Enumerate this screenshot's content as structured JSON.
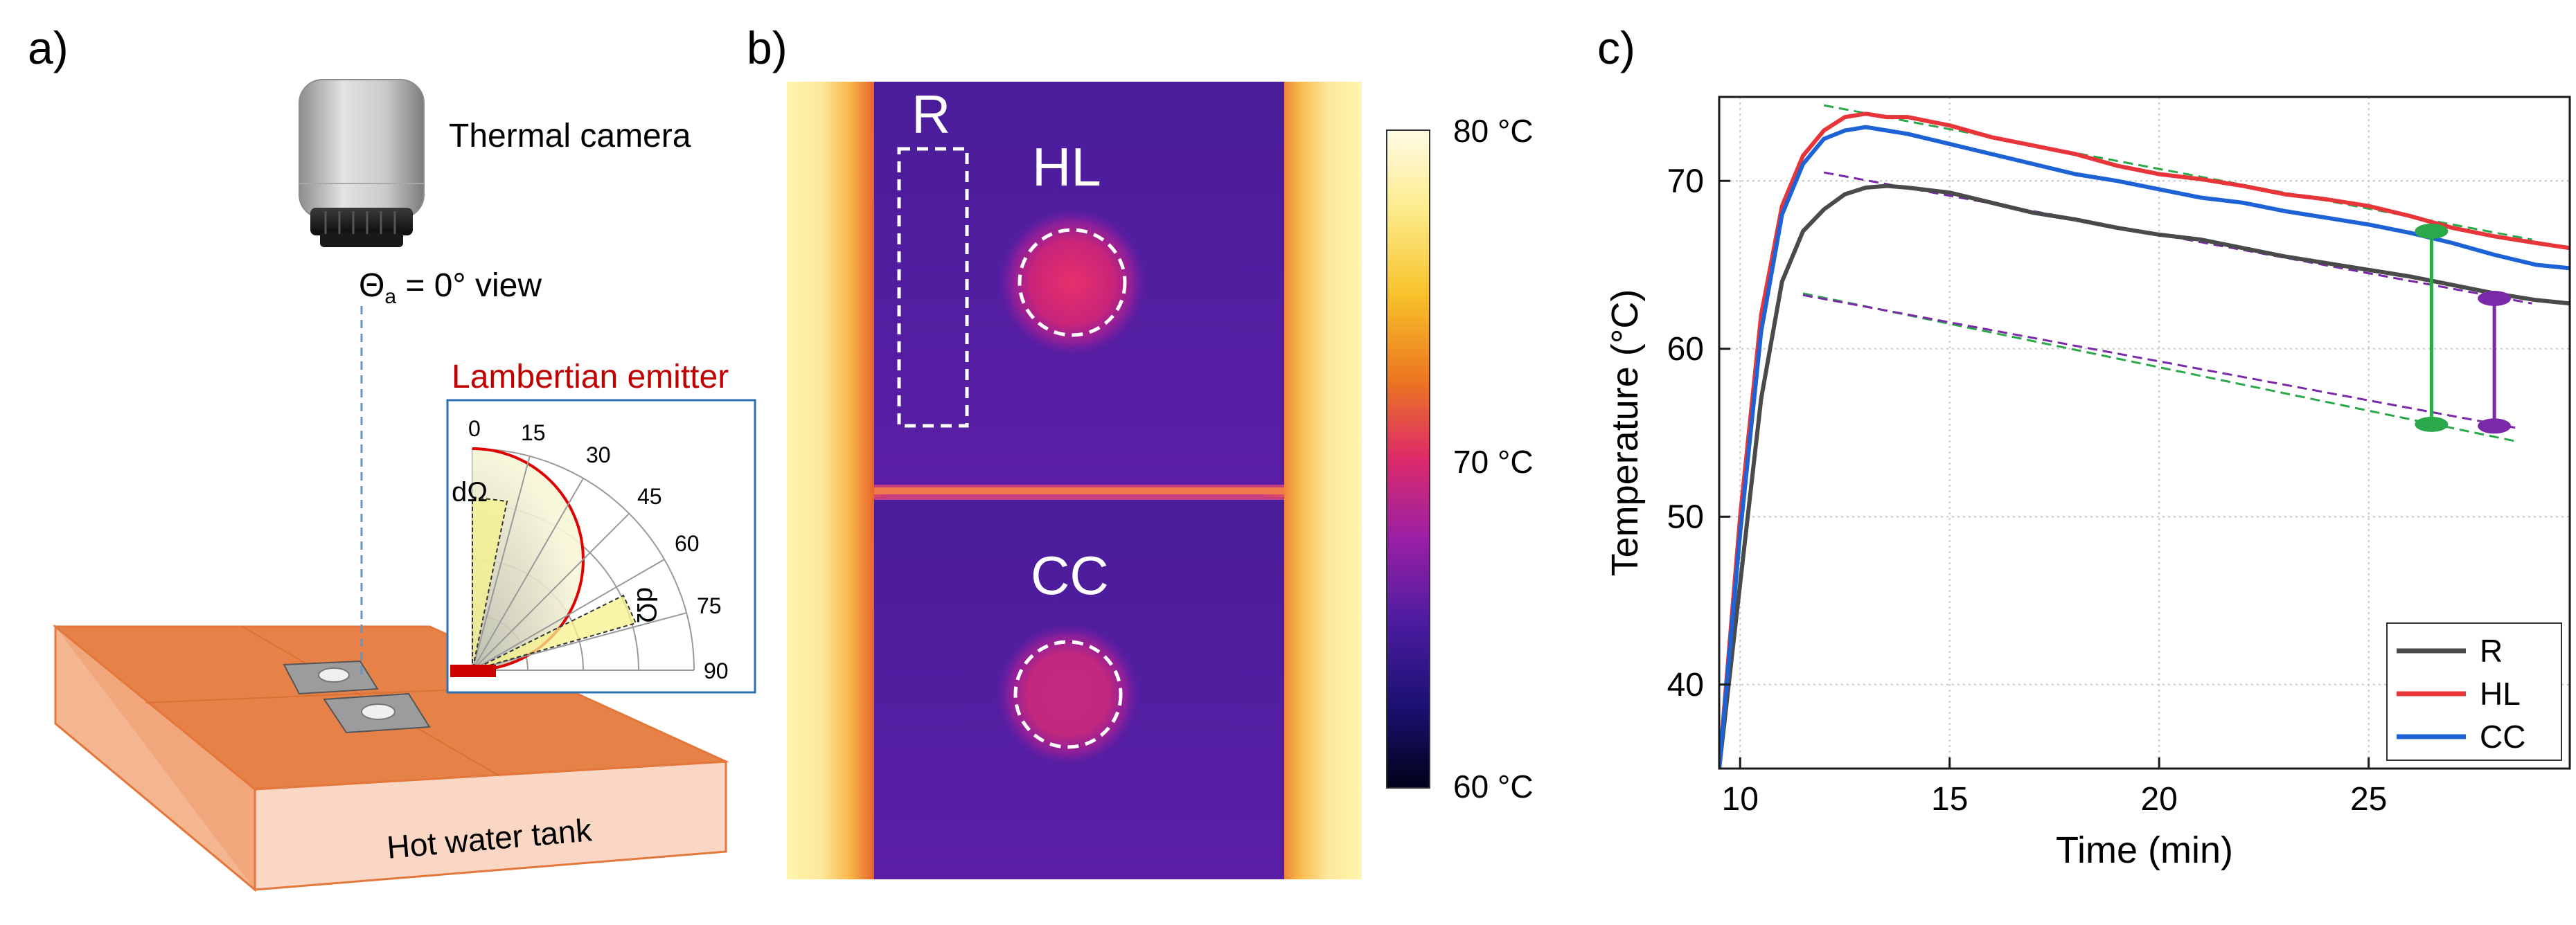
{
  "panels": {
    "a": {
      "label": "a)",
      "camera_label": "Thermal camera",
      "view_label_prefix": "Θ",
      "view_label_sub": "a",
      "view_label_suffix": " = 0° view",
      "emitter_title": "Lambertian emitter",
      "polar_ticks": [
        "0",
        "15",
        "30",
        "45",
        "60",
        "75",
        "90"
      ],
      "domega_label": "dΩ",
      "dz_label": "dΩ",
      "tank_label": "Hot water tank",
      "colors": {
        "tank": "#e8854d",
        "emitter_curve": "#e00000",
        "inset_border": "#2e6fb3",
        "title": "#c00000"
      }
    },
    "b": {
      "label": "b)",
      "region_R": "R",
      "region_HL": "HL",
      "region_CC": "CC",
      "colorbar_ticks": [
        "80 °C",
        "70 °C",
        "60 °C"
      ],
      "colorbar_values_c": [
        80,
        70,
        60
      ]
    },
    "c": {
      "label": "c)"
    }
  },
  "chart_data": {
    "type": "line",
    "xlabel": "Time (min)",
    "ylabel": "Temperature (°C)",
    "xlim": [
      9.5,
      29.8
    ],
    "ylim": [
      35,
      75
    ],
    "xticks": [
      10,
      15,
      20,
      25
    ],
    "yticks": [
      40,
      50,
      60,
      70
    ],
    "grid": true,
    "legend_position": "bottom-right",
    "series": [
      {
        "name": "R",
        "color": "#4a4a4a",
        "x": [
          9.5,
          10.0,
          10.5,
          11.0,
          11.5,
          12.0,
          12.5,
          13.0,
          13.5,
          14.0,
          15.0,
          16.0,
          17.0,
          18.0,
          19.0,
          20.0,
          21.0,
          22.0,
          23.0,
          24.0,
          25.0,
          26.0,
          27.0,
          28.0,
          29.0,
          29.8
        ],
        "y": [
          35.0,
          46.0,
          57.0,
          64.0,
          67.0,
          68.3,
          69.2,
          69.6,
          69.7,
          69.6,
          69.3,
          68.7,
          68.1,
          67.7,
          67.2,
          66.8,
          66.5,
          66.0,
          65.5,
          65.1,
          64.7,
          64.3,
          63.8,
          63.3,
          62.9,
          62.7
        ]
      },
      {
        "name": "HL",
        "color": "#e8353a",
        "x": [
          9.5,
          10.0,
          10.5,
          11.0,
          11.5,
          12.0,
          12.5,
          13.0,
          13.5,
          14.0,
          15.0,
          16.0,
          17.0,
          18.0,
          19.0,
          20.0,
          21.0,
          22.0,
          23.0,
          24.0,
          25.0,
          26.0,
          27.0,
          28.0,
          29.0,
          29.8
        ],
        "y": [
          35.0,
          50.0,
          62.0,
          68.5,
          71.5,
          73.0,
          73.8,
          74.0,
          73.8,
          73.8,
          73.3,
          72.6,
          72.1,
          71.6,
          70.9,
          70.4,
          70.1,
          69.7,
          69.2,
          68.9,
          68.5,
          67.9,
          67.2,
          66.7,
          66.3,
          66.0
        ]
      },
      {
        "name": "CC",
        "color": "#1e63d6",
        "x": [
          9.5,
          10.0,
          10.5,
          11.0,
          11.5,
          12.0,
          12.5,
          13.0,
          13.5,
          14.0,
          15.0,
          16.0,
          17.0,
          18.0,
          19.0,
          20.0,
          21.0,
          22.0,
          23.0,
          24.0,
          25.0,
          26.0,
          27.0,
          28.0,
          29.0,
          29.8
        ],
        "y": [
          35.0,
          49.0,
          61.0,
          68.0,
          71.0,
          72.5,
          73.0,
          73.2,
          73.0,
          72.8,
          72.2,
          71.6,
          71.0,
          70.4,
          70.0,
          69.5,
          69.0,
          68.7,
          68.2,
          67.8,
          67.4,
          66.9,
          66.3,
          65.6,
          65.0,
          64.8
        ]
      }
    ],
    "trend_lines": [
      {
        "color": "#2ba84a",
        "x": [
          12.0,
          28.9
        ],
        "y": [
          74.5,
          66.5
        ]
      },
      {
        "color": "#7a2aa8",
        "x": [
          12.0,
          28.9
        ],
        "y": [
          70.5,
          62.7
        ]
      },
      {
        "color": "#2ba84a",
        "x": [
          11.5,
          28.5
        ],
        "y": [
          63.3,
          54.5
        ]
      },
      {
        "color": "#7a2aa8",
        "x": [
          11.5,
          28.5
        ],
        "y": [
          63.2,
          55.3
        ]
      }
    ],
    "markers": [
      {
        "color": "#2ba84a",
        "x": 26.5,
        "y_top": 67.0,
        "y_bottom": 55.5
      },
      {
        "color": "#7a2aa8",
        "x": 28.0,
        "y_top": 63.0,
        "y_bottom": 55.4
      }
    ]
  }
}
